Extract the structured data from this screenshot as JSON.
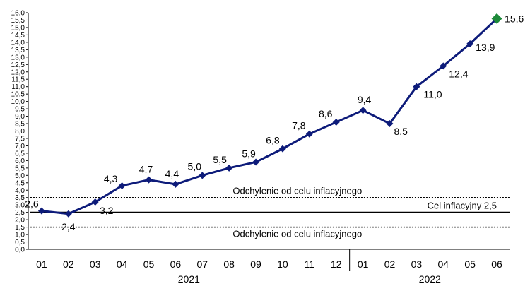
{
  "chart_data": {
    "type": "line",
    "years": [
      "2021",
      "2022"
    ],
    "categories": [
      "01",
      "02",
      "03",
      "04",
      "05",
      "06",
      "07",
      "08",
      "09",
      "10",
      "11",
      "12",
      "01",
      "02",
      "03",
      "04",
      "05",
      "06"
    ],
    "values": [
      2.6,
      2.4,
      3.2,
      4.3,
      4.7,
      4.4,
      5.0,
      5.5,
      5.9,
      6.8,
      7.8,
      8.6,
      9.4,
      8.5,
      11.0,
      12.4,
      13.9,
      15.6
    ],
    "data_labels": [
      "2,6",
      "2,4",
      "3,2",
      "4,3",
      "4,7",
      "4,4",
      "5,0",
      "5,5",
      "5,9",
      "6,8",
      "7,8",
      "8,6",
      "9,4",
      "8,5",
      "11,0",
      "12,4",
      "13,9",
      "15,6"
    ],
    "y_ticks": [
      "0,0",
      "0,5",
      "1,0",
      "1,5",
      "2,0",
      "2,5",
      "3,0",
      "3,5",
      "4,0",
      "4,5",
      "5,0",
      "5,5",
      "6,0",
      "6,5",
      "7,0",
      "7,5",
      "8,0",
      "8,5",
      "9,0",
      "9,5",
      "10,0",
      "10,5",
      "11,0",
      "11,5",
      "12,0",
      "12,5",
      "13,0",
      "13,5",
      "14,0",
      "14,5",
      "15,0",
      "15,5",
      "16,0"
    ],
    "ylim": [
      0,
      16
    ],
    "target": {
      "value": 2.5,
      "label": "Cel inflacyjny 2,5"
    },
    "band": {
      "upper": 3.5,
      "lower": 1.5,
      "upper_label": "Odchylenie od celu inflacyjnego",
      "lower_label": "Odchylenie od celu inflacyjnego"
    },
    "colors": {
      "line": "#0d1b7a",
      "marker": "#0d1b7a",
      "last_marker": "#1e8a3a"
    }
  }
}
